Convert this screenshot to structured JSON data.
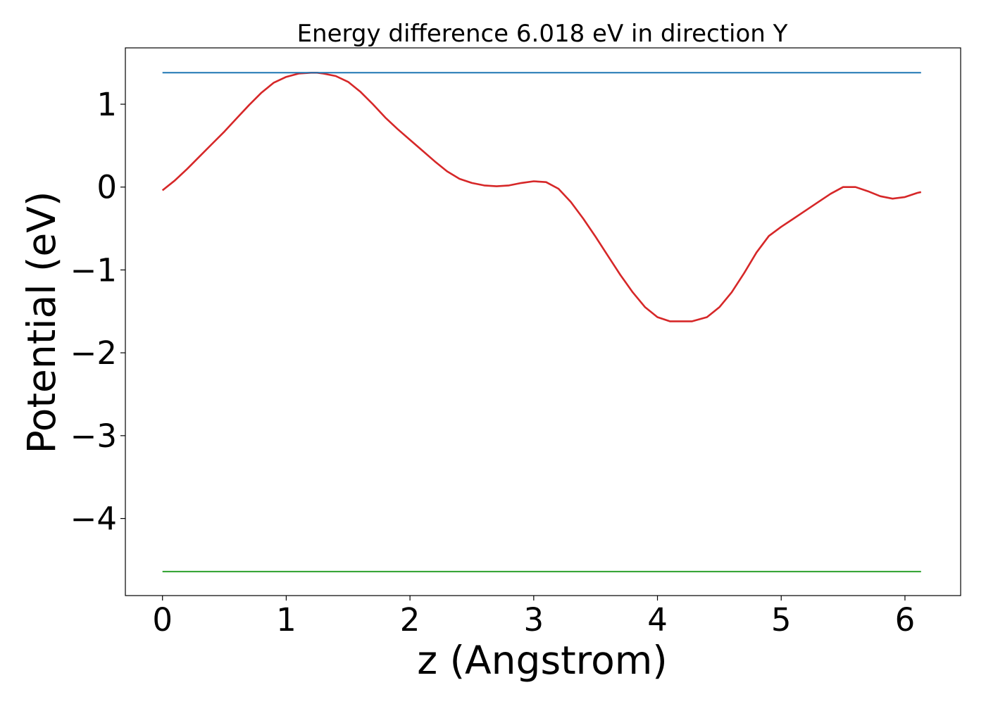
{
  "chart_data": {
    "type": "line",
    "title": "Energy difference 6.018 eV in direction Y",
    "xlabel": "z (Angstrom)",
    "ylabel": "Potential (eV)",
    "xlim": [
      -0.3,
      6.45
    ],
    "ylim": [
      -4.93,
      1.68
    ],
    "x_ticks": [
      0,
      1,
      2,
      3,
      4,
      5,
      6
    ],
    "x_tick_labels": [
      "0",
      "1",
      "2",
      "3",
      "4",
      "5",
      "6"
    ],
    "y_ticks": [
      1,
      0,
      -1,
      -2,
      -3,
      -4
    ],
    "y_tick_labels": [
      "1",
      "0",
      "−1",
      "−2",
      "−3",
      "−4"
    ],
    "grid": false,
    "series": [
      {
        "color": "#d62728",
        "x": [
          0,
          0.1,
          0.2,
          0.3,
          0.4,
          0.5,
          0.6,
          0.7,
          0.8,
          0.9,
          1.0,
          1.1,
          1.2,
          1.25,
          1.3,
          1.4,
          1.5,
          1.6,
          1.7,
          1.8,
          1.9,
          2.0,
          2.1,
          2.2,
          2.3,
          2.4,
          2.5,
          2.6,
          2.7,
          2.8,
          2.9,
          3.0,
          3.1,
          3.2,
          3.3,
          3.4,
          3.5,
          3.6,
          3.7,
          3.8,
          3.9,
          4.0,
          4.1,
          4.2,
          4.28,
          4.4,
          4.5,
          4.6,
          4.7,
          4.8,
          4.9,
          5.0,
          5.1,
          5.2,
          5.3,
          5.4,
          5.5,
          5.6,
          5.7,
          5.8,
          5.9,
          6.0,
          6.1,
          6.13
        ],
        "y": [
          -0.04,
          0.08,
          0.22,
          0.37,
          0.52,
          0.67,
          0.83,
          0.99,
          1.14,
          1.26,
          1.33,
          1.37,
          1.38,
          1.38,
          1.37,
          1.34,
          1.27,
          1.15,
          1.0,
          0.84,
          0.7,
          0.57,
          0.44,
          0.31,
          0.19,
          0.1,
          0.05,
          0.02,
          0.01,
          0.02,
          0.05,
          0.07,
          0.06,
          -0.02,
          -0.18,
          -0.38,
          -0.6,
          -0.83,
          -1.06,
          -1.27,
          -1.45,
          -1.57,
          -1.62,
          -1.62,
          -1.62,
          -1.57,
          -1.45,
          -1.27,
          -1.04,
          -0.79,
          -0.59,
          -0.48,
          -0.38,
          -0.28,
          -0.18,
          -0.08,
          0.0,
          0.0,
          -0.05,
          -0.11,
          -0.14,
          -0.12,
          -0.07,
          -0.06
        ]
      },
      {
        "color": "#1f77b4",
        "x": [
          0,
          6.13
        ],
        "y": [
          1.38,
          1.38
        ]
      },
      {
        "color": "#2ca02c",
        "x": [
          0,
          6.13
        ],
        "y": [
          -4.64,
          -4.64
        ]
      }
    ]
  }
}
